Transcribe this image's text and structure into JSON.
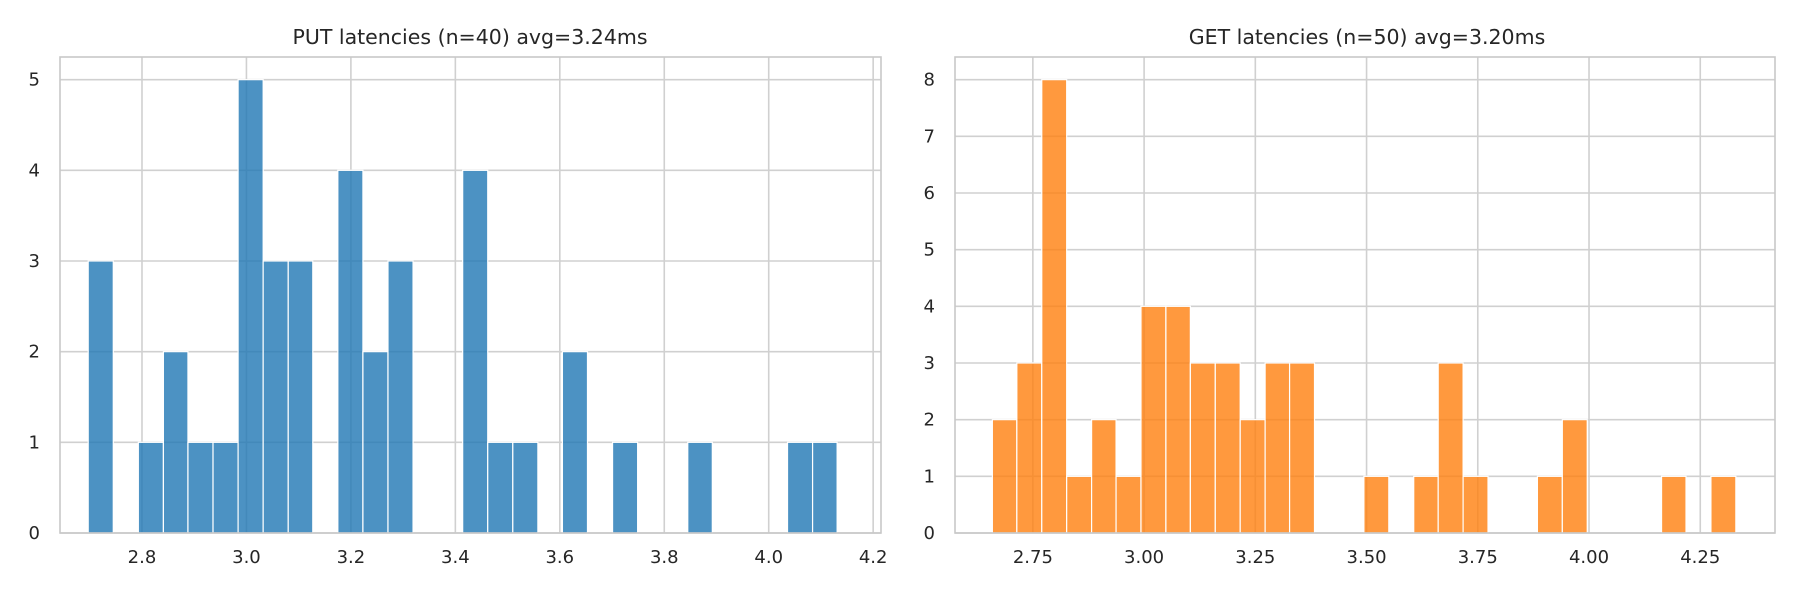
{
  "chart_data": [
    {
      "type": "bar",
      "title": "PUT latencies (n=40) avg=3.24ms",
      "xlabel": "",
      "ylabel": "",
      "xlim": [
        2.643,
        4.215
      ],
      "ylim": [
        0,
        5.25
      ],
      "xticks": [
        2.8,
        3.0,
        3.2,
        3.4,
        3.6,
        3.8,
        4.0,
        4.2
      ],
      "xtick_labels": [
        "2.8",
        "3.0",
        "3.2",
        "3.4",
        "3.6",
        "3.8",
        "4.0",
        "4.2"
      ],
      "yticks": [
        0,
        1,
        2,
        3,
        4,
        5
      ],
      "ytick_labels": [
        "0",
        "1",
        "2",
        "3",
        "4",
        "5"
      ],
      "grid": true,
      "color": "#1f77b4",
      "bins": [
        {
          "x0": 2.697,
          "x1": 2.745,
          "count": 3
        },
        {
          "x0": 2.745,
          "x1": 2.793,
          "count": 0
        },
        {
          "x0": 2.793,
          "x1": 2.841,
          "count": 1
        },
        {
          "x0": 2.841,
          "x1": 2.888,
          "count": 2
        },
        {
          "x0": 2.888,
          "x1": 2.936,
          "count": 1
        },
        {
          "x0": 2.936,
          "x1": 2.984,
          "count": 1
        },
        {
          "x0": 2.984,
          "x1": 3.032,
          "count": 5
        },
        {
          "x0": 3.032,
          "x1": 3.08,
          "count": 3
        },
        {
          "x0": 3.08,
          "x1": 3.127,
          "count": 3
        },
        {
          "x0": 3.127,
          "x1": 3.175,
          "count": 0
        },
        {
          "x0": 3.175,
          "x1": 3.223,
          "count": 4
        },
        {
          "x0": 3.223,
          "x1": 3.271,
          "count": 2
        },
        {
          "x0": 3.271,
          "x1": 3.319,
          "count": 3
        },
        {
          "x0": 3.319,
          "x1": 3.366,
          "count": 0
        },
        {
          "x0": 3.366,
          "x1": 3.414,
          "count": 0
        },
        {
          "x0": 3.414,
          "x1": 3.462,
          "count": 4
        },
        {
          "x0": 3.462,
          "x1": 3.51,
          "count": 1
        },
        {
          "x0": 3.51,
          "x1": 3.558,
          "count": 1
        },
        {
          "x0": 3.558,
          "x1": 3.605,
          "count": 0
        },
        {
          "x0": 3.605,
          "x1": 3.653,
          "count": 2
        },
        {
          "x0": 3.653,
          "x1": 3.701,
          "count": 0
        },
        {
          "x0": 3.701,
          "x1": 3.749,
          "count": 1
        },
        {
          "x0": 3.749,
          "x1": 3.797,
          "count": 0
        },
        {
          "x0": 3.797,
          "x1": 3.845,
          "count": 0
        },
        {
          "x0": 3.845,
          "x1": 3.892,
          "count": 1
        },
        {
          "x0": 3.892,
          "x1": 3.94,
          "count": 0
        },
        {
          "x0": 3.94,
          "x1": 3.988,
          "count": 0
        },
        {
          "x0": 3.988,
          "x1": 4.036,
          "count": 0
        },
        {
          "x0": 4.036,
          "x1": 4.084,
          "count": 1
        },
        {
          "x0": 4.084,
          "x1": 4.131,
          "count": 1
        }
      ]
    },
    {
      "type": "bar",
      "title": "GET latencies (n=50) avg=3.20ms",
      "xlabel": "",
      "ylabel": "",
      "xlim": [
        2.575,
        4.418
      ],
      "ylim": [
        0,
        8.4
      ],
      "xticks": [
        2.75,
        3.0,
        3.25,
        3.5,
        3.75,
        4.0,
        4.25
      ],
      "xtick_labels": [
        "2.75",
        "3.00",
        "3.25",
        "3.50",
        "3.75",
        "4.00",
        "4.25"
      ],
      "yticks": [
        0,
        1,
        2,
        3,
        4,
        5,
        6,
        7,
        8
      ],
      "ytick_labels": [
        "0",
        "1",
        "2",
        "3",
        "4",
        "5",
        "6",
        "7",
        "8"
      ],
      "grid": true,
      "color": "#ff7f0e",
      "bins": [
        {
          "x0": 2.659,
          "x1": 2.714,
          "count": 2
        },
        {
          "x0": 2.714,
          "x1": 2.77,
          "count": 3
        },
        {
          "x0": 2.77,
          "x1": 2.826,
          "count": 8
        },
        {
          "x0": 2.826,
          "x1": 2.882,
          "count": 1
        },
        {
          "x0": 2.882,
          "x1": 2.937,
          "count": 2
        },
        {
          "x0": 2.937,
          "x1": 2.993,
          "count": 1
        },
        {
          "x0": 2.993,
          "x1": 3.049,
          "count": 4
        },
        {
          "x0": 3.049,
          "x1": 3.104,
          "count": 4
        },
        {
          "x0": 3.104,
          "x1": 3.16,
          "count": 3
        },
        {
          "x0": 3.16,
          "x1": 3.216,
          "count": 3
        },
        {
          "x0": 3.216,
          "x1": 3.272,
          "count": 2
        },
        {
          "x0": 3.272,
          "x1": 3.327,
          "count": 3
        },
        {
          "x0": 3.327,
          "x1": 3.383,
          "count": 3
        },
        {
          "x0": 3.383,
          "x1": 3.439,
          "count": 0
        },
        {
          "x0": 3.439,
          "x1": 3.494,
          "count": 0
        },
        {
          "x0": 3.494,
          "x1": 3.55,
          "count": 1
        },
        {
          "x0": 3.55,
          "x1": 3.606,
          "count": 0
        },
        {
          "x0": 3.606,
          "x1": 3.661,
          "count": 1
        },
        {
          "x0": 3.661,
          "x1": 3.717,
          "count": 3
        },
        {
          "x0": 3.717,
          "x1": 3.773,
          "count": 1
        },
        {
          "x0": 3.773,
          "x1": 3.829,
          "count": 0
        },
        {
          "x0": 3.829,
          "x1": 3.884,
          "count": 0
        },
        {
          "x0": 3.884,
          "x1": 3.94,
          "count": 1
        },
        {
          "x0": 3.94,
          "x1": 3.996,
          "count": 2
        },
        {
          "x0": 3.996,
          "x1": 4.051,
          "count": 0
        },
        {
          "x0": 4.051,
          "x1": 4.107,
          "count": 0
        },
        {
          "x0": 4.107,
          "x1": 4.163,
          "count": 0
        },
        {
          "x0": 4.163,
          "x1": 4.218,
          "count": 1
        },
        {
          "x0": 4.218,
          "x1": 4.274,
          "count": 0
        },
        {
          "x0": 4.274,
          "x1": 4.33,
          "count": 1
        }
      ]
    }
  ]
}
